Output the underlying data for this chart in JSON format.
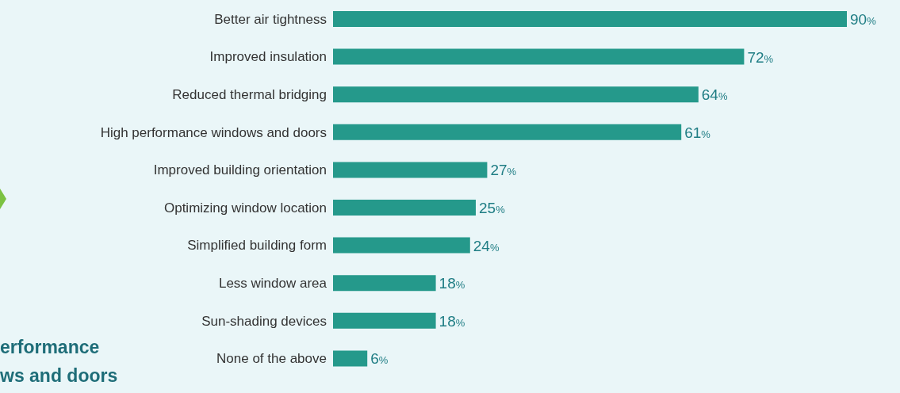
{
  "chart_data": {
    "type": "bar",
    "orientation": "horizontal",
    "categories": [
      "Better air tightness",
      "Improved insulation",
      "Reduced thermal bridging",
      "High performance windows and doors",
      "Improved building orientation",
      "Optimizing window location",
      "Simplified building form",
      "Less window area",
      "Sun-shading devices",
      "None of the above"
    ],
    "values": [
      90,
      72,
      64,
      61,
      27,
      25,
      24,
      18,
      18,
      6
    ],
    "value_labels": [
      "90%",
      "72%",
      "64%",
      "61%",
      "27%",
      "25%",
      "24%",
      "18%",
      "18%",
      "6%"
    ],
    "color": "#25998b",
    "annotations": [
      "erformance\nws and doors"
    ]
  }
}
